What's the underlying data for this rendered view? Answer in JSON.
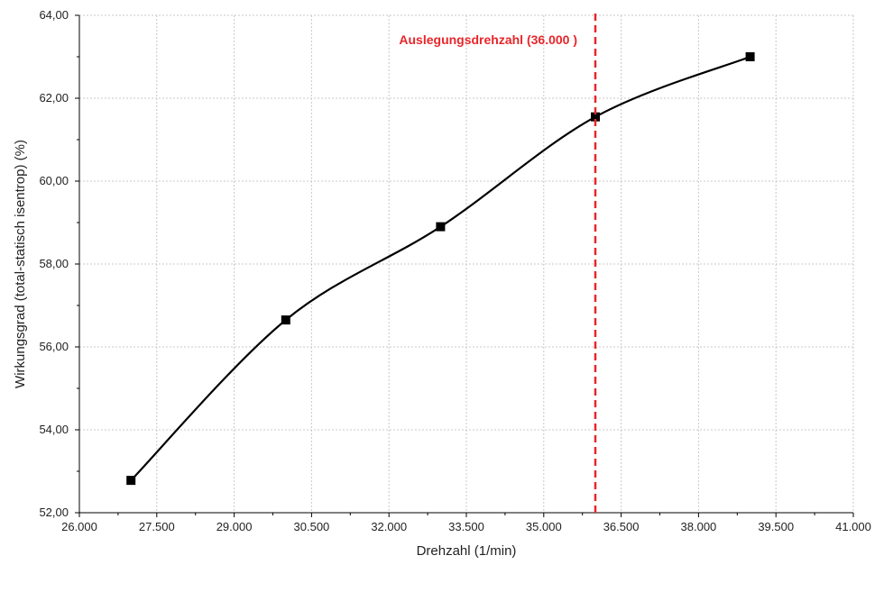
{
  "chart_data": {
    "type": "line",
    "xlabel": "Drehzahl (1/min)",
    "ylabel": "Wirkungsgrad (total-statisch isentrop)  (%)",
    "xlim": [
      26000,
      41000
    ],
    "ylim": [
      52,
      64
    ],
    "x_ticks": [
      "26.000",
      "27.500",
      "29.000",
      "30.500",
      "32.000",
      "33.500",
      "35.000",
      "36.500",
      "38.000",
      "39.500",
      "41.000"
    ],
    "y_ticks": [
      "52,00",
      "54,00",
      "56,00",
      "58,00",
      "60,00",
      "62,00",
      "64,00"
    ],
    "grid": true,
    "series": [
      {
        "x": [
          27000,
          30000,
          33000,
          36000,
          39000
        ],
        "values": [
          52.78,
          56.65,
          58.9,
          61.55,
          63.0
        ],
        "marker": "square",
        "color": "#000000",
        "smooth": true
      }
    ],
    "annotation": {
      "text": "Auslegungsdrehzahl (36.000 )",
      "x": 36000,
      "color": "#e8262a",
      "style": "dashed-vertical-line"
    }
  }
}
